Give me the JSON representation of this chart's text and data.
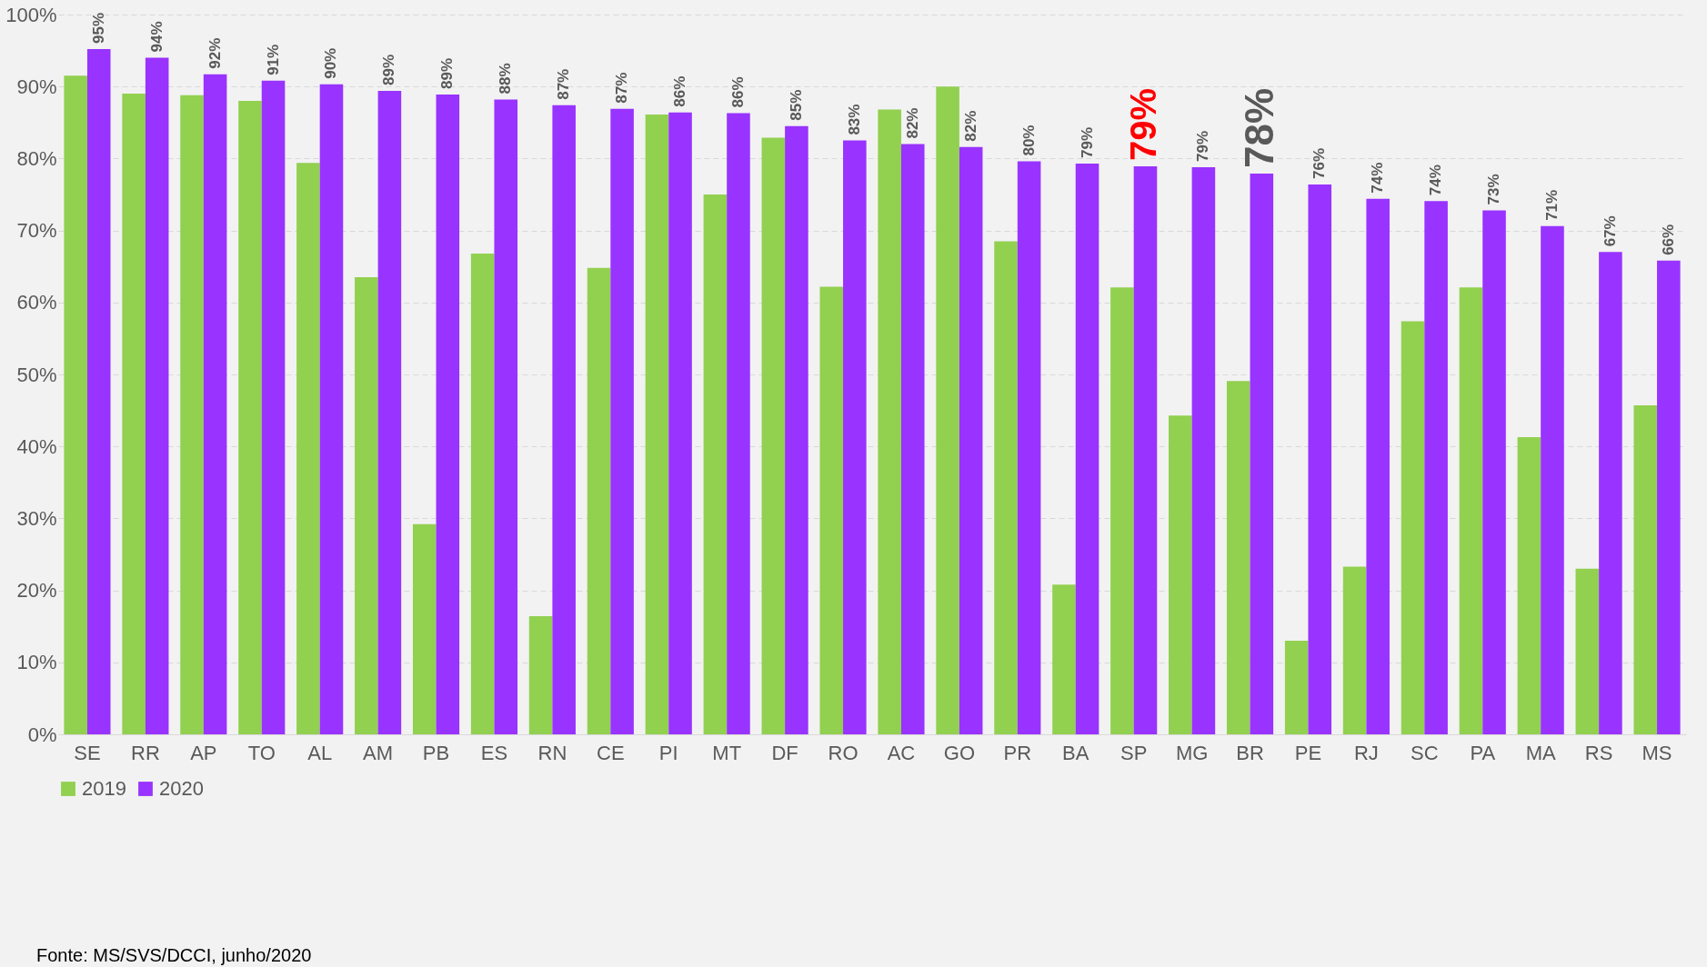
{
  "chart_data": {
    "type": "bar",
    "categories": [
      "SE",
      "RR",
      "AP",
      "TO",
      "AL",
      "AM",
      "PB",
      "ES",
      "RN",
      "CE",
      "PI",
      "MT",
      "DF",
      "RO",
      "AC",
      "GO",
      "PR",
      "BA",
      "SP",
      "MG",
      "BR",
      "PE",
      "RJ",
      "SC",
      "PA",
      "MA",
      "RS",
      "MS"
    ],
    "series": [
      {
        "name": "2019",
        "color": "#92d050",
        "values": [
          91.5,
          89.0,
          88.8,
          88.0,
          79.4,
          63.5,
          29.2,
          66.8,
          16.4,
          64.8,
          86.1,
          75.0,
          82.9,
          62.2,
          86.8,
          90.0,
          68.5,
          20.8,
          62.1,
          44.3,
          49.1,
          13.0,
          23.3,
          57.4,
          62.1,
          41.3,
          23.0,
          45.7
        ]
      },
      {
        "name": "2020",
        "color": "#9933ff",
        "values": [
          95.2,
          94.0,
          91.7,
          90.8,
          90.3,
          89.4,
          88.9,
          88.2,
          87.4,
          86.9,
          86.4,
          86.3,
          84.5,
          82.5,
          82.0,
          81.6,
          79.6,
          79.3,
          78.9,
          78.8,
          77.9,
          76.4,
          74.4,
          74.1,
          72.8,
          70.6,
          67.0,
          65.8
        ],
        "value_labels": [
          "95%",
          "94%",
          "92%",
          "91%",
          "90%",
          "89%",
          "89%",
          "88%",
          "87%",
          "87%",
          "86%",
          "86%",
          "85%",
          "83%",
          "82%",
          "82%",
          "80%",
          "79%",
          "79%",
          "79%",
          "78%",
          "76%",
          "74%",
          "74%",
          "73%",
          "71%",
          "67%",
          "66%"
        ]
      }
    ],
    "ylim": [
      0,
      100
    ],
    "yticks": [
      {
        "value": 0,
        "label": "0%"
      },
      {
        "value": 10,
        "label": "10%"
      },
      {
        "value": 20,
        "label": "20%"
      },
      {
        "value": 30,
        "label": "30%"
      },
      {
        "value": 40,
        "label": "40%"
      },
      {
        "value": 50,
        "label": "50%"
      },
      {
        "value": 60,
        "label": "60%"
      },
      {
        "value": 70,
        "label": "70%"
      },
      {
        "value": 80,
        "label": "80%"
      },
      {
        "value": 90,
        "label": "90%"
      },
      {
        "value": 100,
        "label": "100%"
      }
    ],
    "grid": "y",
    "legend": "bottom",
    "annotations": [
      "Fonte: MS/SVS/DCCI, junho/2020"
    ]
  }
}
